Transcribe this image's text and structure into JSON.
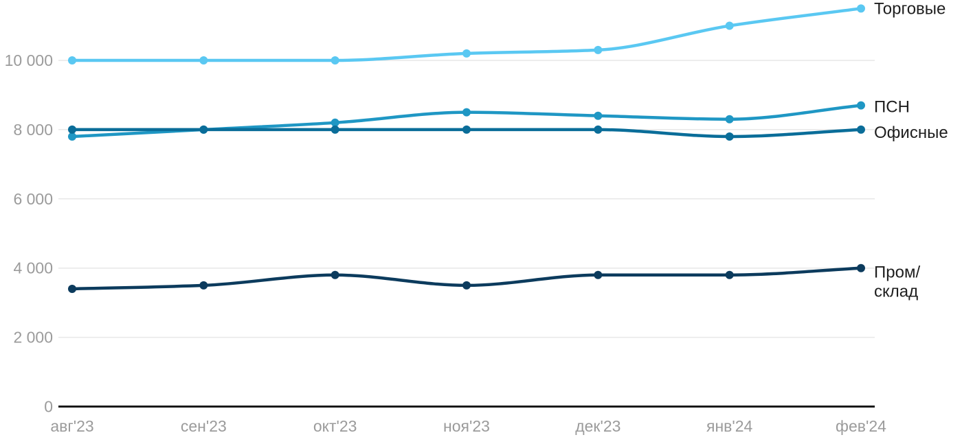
{
  "chart_data": {
    "type": "line",
    "title": "",
    "xlabel": "",
    "ylabel": "",
    "x_categories": [
      "авг'23",
      "сен'23",
      "окт'23",
      "ноя'23",
      "дек'23",
      "янв'24",
      "фев'24"
    ],
    "y_ticks": [
      {
        "value": 0,
        "label": "0"
      },
      {
        "value": 2000,
        "label": "2 000"
      },
      {
        "value": 4000,
        "label": "4 000"
      },
      {
        "value": 6000,
        "label": "6 000"
      },
      {
        "value": 8000,
        "label": "8 000"
      },
      {
        "value": 10000,
        "label": "10 000"
      }
    ],
    "ylim": [
      0,
      11750
    ],
    "grid": true,
    "legend_position": "right-inline",
    "series": [
      {
        "name": "Торговые",
        "label_lines": [
          "Торговые"
        ],
        "color": "#5ac8f2",
        "values": [
          10000,
          10000,
          10000,
          10200,
          10300,
          11000,
          11500
        ]
      },
      {
        "name": "ПСН",
        "label_lines": [
          "ПСН"
        ],
        "color": "#1f97c4",
        "values": [
          7800,
          8000,
          8200,
          8500,
          8400,
          8300,
          8700
        ]
      },
      {
        "name": "Офисные",
        "label_lines": [
          "Офисные"
        ],
        "color": "#0a6d99",
        "values": [
          8000,
          8000,
          8000,
          8000,
          8000,
          7800,
          8000
        ]
      },
      {
        "name": "Пром/склад",
        "label_lines": [
          "Пром/",
          "склад"
        ],
        "color": "#0c3b5d",
        "values": [
          3400,
          3500,
          3800,
          3500,
          3800,
          3800,
          4000
        ]
      }
    ],
    "colors": {
      "background": "#ffffff",
      "grid": "#e7e7e7",
      "axis_line": "#1a1a1a",
      "tick_text": "#9b9b9b",
      "label_text": "#1e1e1e"
    }
  }
}
